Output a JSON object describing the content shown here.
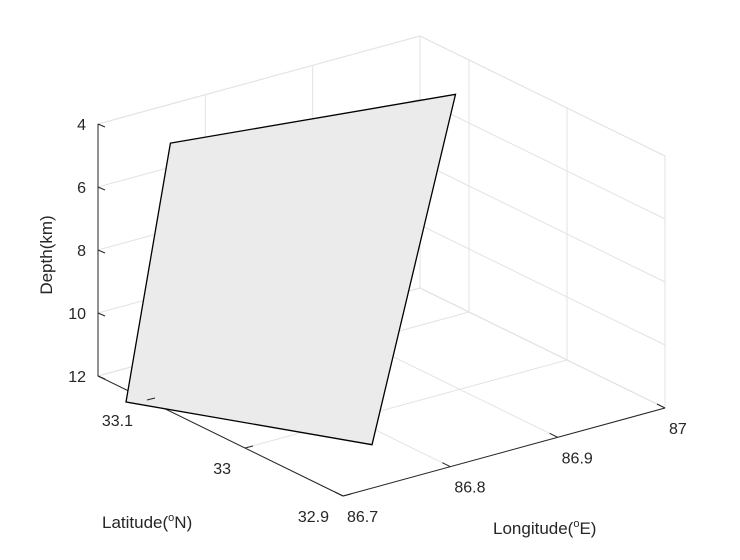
{
  "chart_data": {
    "type": "surface3d",
    "xlabel": {
      "main": "Longitude(",
      "sup": "o",
      "end": "E)"
    },
    "ylabel": {
      "main": "Latitude(",
      "sup": "o",
      "end": "N)"
    },
    "zlabel": "Depth(km)",
    "xlim": [
      86.7,
      87.0
    ],
    "ylim": [
      32.9,
      33.15
    ],
    "zlim": [
      4,
      12
    ],
    "z_direction": "reverse",
    "grid": true,
    "x_ticks": [
      "86.7",
      "86.8",
      "86.9",
      "87"
    ],
    "x_tick_values": [
      86.7,
      86.8,
      86.9,
      87.0
    ],
    "y_ticks": [
      "32.9",
      "33",
      "33.1"
    ],
    "y_tick_values": [
      32.9,
      33.0,
      33.1
    ],
    "z_ticks": [
      "4",
      "6",
      "8",
      "10",
      "12"
    ],
    "z_tick_values": [
      4,
      6,
      8,
      10,
      12
    ],
    "plane": {
      "corners": [
        {
          "lon": 86.72,
          "lat": 33.098,
          "depth": 4.0
        },
        {
          "lon": 86.95,
          "lat": 33.059,
          "depth": 4.0
        },
        {
          "lon": 86.78,
          "lat": 32.958,
          "depth": 12.0
        },
        {
          "lon": 86.685,
          "lat": 33.105,
          "depth": 12.0
        }
      ],
      "face_color": "#ebebeb",
      "edge_color": "#000000"
    }
  }
}
